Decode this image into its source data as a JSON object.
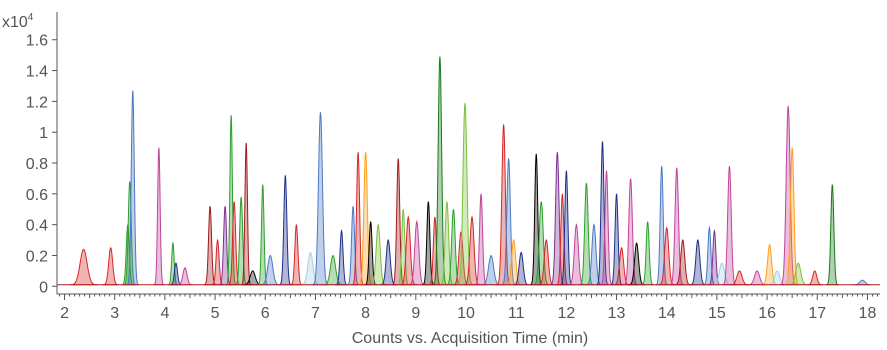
{
  "chart_data": {
    "type": "area",
    "xlabel": "Counts vs. Acquisition Time (min)",
    "ylabel": "",
    "y_multiplier_label": "x10",
    "y_multiplier_exp": "4",
    "xlim": [
      1.85,
      18.25
    ],
    "ylim": [
      -0.05,
      1.78
    ],
    "x_ticks": [
      2,
      3,
      4,
      5,
      6,
      7,
      8,
      9,
      10,
      11,
      12,
      13,
      14,
      15,
      16,
      17,
      18
    ],
    "y_ticks": [
      0,
      0.2,
      0.4,
      0.6,
      0.8,
      1,
      1.2,
      1.4,
      1.6
    ],
    "y_tick_labels": [
      "0",
      "0.2",
      "0.4",
      "0.6",
      "0.8",
      "1",
      "1.2",
      "1.4",
      "1.6"
    ],
    "grid": false,
    "legend": "none",
    "baseline": 0.01,
    "peaks": [
      {
        "x": 2.38,
        "y": 0.24,
        "w": 0.07,
        "c": "#d62728"
      },
      {
        "x": 2.92,
        "y": 0.25,
        "w": 0.04,
        "c": "#d62728"
      },
      {
        "x": 3.26,
        "y": 0.4,
        "w": 0.03,
        "c": "#2ca02c"
      },
      {
        "x": 3.3,
        "y": 0.68,
        "w": 0.03,
        "c": "#2ca02c"
      },
      {
        "x": 3.36,
        "y": 1.27,
        "w": 0.03,
        "c": "#4e79c4"
      },
      {
        "x": 3.88,
        "y": 0.9,
        "w": 0.025,
        "c": "#c2449b"
      },
      {
        "x": 4.16,
        "y": 0.28,
        "w": 0.025,
        "c": "#2ca02c"
      },
      {
        "x": 4.22,
        "y": 0.15,
        "w": 0.03,
        "c": "#1f2f8a"
      },
      {
        "x": 4.4,
        "y": 0.12,
        "w": 0.04,
        "c": "#c2449b"
      },
      {
        "x": 4.9,
        "y": 0.52,
        "w": 0.03,
        "c": "#a01c1c"
      },
      {
        "x": 5.05,
        "y": 0.3,
        "w": 0.03,
        "c": "#d62728"
      },
      {
        "x": 5.2,
        "y": 0.52,
        "w": 0.03,
        "c": "#7b3294"
      },
      {
        "x": 5.32,
        "y": 1.11,
        "w": 0.025,
        "c": "#2ca02c"
      },
      {
        "x": 5.38,
        "y": 0.55,
        "w": 0.03,
        "c": "#d62728"
      },
      {
        "x": 5.52,
        "y": 0.58,
        "w": 0.03,
        "c": "#2ca02c"
      },
      {
        "x": 5.62,
        "y": 0.93,
        "w": 0.025,
        "c": "#a01c1c"
      },
      {
        "x": 5.75,
        "y": 0.1,
        "w": 0.05,
        "c": "#000000"
      },
      {
        "x": 5.95,
        "y": 0.66,
        "w": 0.025,
        "c": "#2ca02c"
      },
      {
        "x": 6.1,
        "y": 0.2,
        "w": 0.05,
        "c": "#4e79c4"
      },
      {
        "x": 6.4,
        "y": 0.72,
        "w": 0.03,
        "c": "#1f2f8a"
      },
      {
        "x": 6.62,
        "y": 0.4,
        "w": 0.03,
        "c": "#d62728"
      },
      {
        "x": 6.9,
        "y": 0.22,
        "w": 0.05,
        "c": "#a6cee3"
      },
      {
        "x": 7.1,
        "y": 1.13,
        "w": 0.04,
        "c": "#4e79c4"
      },
      {
        "x": 7.35,
        "y": 0.2,
        "w": 0.05,
        "c": "#2ca02c"
      },
      {
        "x": 7.52,
        "y": 0.36,
        "w": 0.03,
        "c": "#1f2f8a"
      },
      {
        "x": 7.75,
        "y": 0.52,
        "w": 0.03,
        "c": "#4e79c4"
      },
      {
        "x": 7.85,
        "y": 0.87,
        "w": 0.03,
        "c": "#d62728"
      },
      {
        "x": 8.0,
        "y": 0.87,
        "w": 0.035,
        "c": "#ff9f1c"
      },
      {
        "x": 8.1,
        "y": 0.42,
        "w": 0.03,
        "c": "#000000"
      },
      {
        "x": 8.25,
        "y": 0.4,
        "w": 0.04,
        "c": "#7fbf3f"
      },
      {
        "x": 8.45,
        "y": 0.3,
        "w": 0.04,
        "c": "#1f2f8a"
      },
      {
        "x": 8.65,
        "y": 0.83,
        "w": 0.03,
        "c": "#a01c1c"
      },
      {
        "x": 8.75,
        "y": 0.5,
        "w": 0.03,
        "c": "#7fbf3f"
      },
      {
        "x": 8.85,
        "y": 0.45,
        "w": 0.04,
        "c": "#d62728"
      },
      {
        "x": 9.02,
        "y": 0.42,
        "w": 0.04,
        "c": "#c2449b"
      },
      {
        "x": 9.25,
        "y": 0.55,
        "w": 0.03,
        "c": "#000000"
      },
      {
        "x": 9.38,
        "y": 0.45,
        "w": 0.03,
        "c": "#d62728"
      },
      {
        "x": 9.48,
        "y": 1.49,
        "w": 0.035,
        "c": "#1a7a1a"
      },
      {
        "x": 9.62,
        "y": 0.55,
        "w": 0.035,
        "c": "#7fbf3f"
      },
      {
        "x": 9.75,
        "y": 0.5,
        "w": 0.035,
        "c": "#2ca02c"
      },
      {
        "x": 9.9,
        "y": 0.35,
        "w": 0.04,
        "c": "#d62728"
      },
      {
        "x": 9.98,
        "y": 1.19,
        "w": 0.04,
        "c": "#7fbf3f"
      },
      {
        "x": 10.12,
        "y": 0.45,
        "w": 0.04,
        "c": "#d62728"
      },
      {
        "x": 10.3,
        "y": 0.6,
        "w": 0.03,
        "c": "#c2449b"
      },
      {
        "x": 10.5,
        "y": 0.2,
        "w": 0.05,
        "c": "#4e79c4"
      },
      {
        "x": 10.75,
        "y": 1.05,
        "w": 0.035,
        "c": "#d62728"
      },
      {
        "x": 10.85,
        "y": 0.83,
        "w": 0.035,
        "c": "#4e79c4"
      },
      {
        "x": 10.95,
        "y": 0.3,
        "w": 0.04,
        "c": "#ff9f1c"
      },
      {
        "x": 11.1,
        "y": 0.22,
        "w": 0.04,
        "c": "#1f2f8a"
      },
      {
        "x": 11.4,
        "y": 0.86,
        "w": 0.03,
        "c": "#000000"
      },
      {
        "x": 11.5,
        "y": 0.55,
        "w": 0.04,
        "c": "#2ca02c"
      },
      {
        "x": 11.6,
        "y": 0.3,
        "w": 0.04,
        "c": "#d62728"
      },
      {
        "x": 11.82,
        "y": 0.87,
        "w": 0.035,
        "c": "#7b3294"
      },
      {
        "x": 11.92,
        "y": 0.6,
        "w": 0.03,
        "c": "#d62728"
      },
      {
        "x": 12.0,
        "y": 0.75,
        "w": 0.03,
        "c": "#1f2f8a"
      },
      {
        "x": 12.2,
        "y": 0.4,
        "w": 0.04,
        "c": "#c2449b"
      },
      {
        "x": 12.4,
        "y": 0.67,
        "w": 0.035,
        "c": "#2ca02c"
      },
      {
        "x": 12.55,
        "y": 0.4,
        "w": 0.04,
        "c": "#4e79c4"
      },
      {
        "x": 12.72,
        "y": 0.94,
        "w": 0.03,
        "c": "#1f2f8a"
      },
      {
        "x": 12.8,
        "y": 0.75,
        "w": 0.03,
        "c": "#c2449b"
      },
      {
        "x": 13.0,
        "y": 0.6,
        "w": 0.03,
        "c": "#1f2f8a"
      },
      {
        "x": 13.1,
        "y": 0.25,
        "w": 0.04,
        "c": "#d62728"
      },
      {
        "x": 13.28,
        "y": 0.7,
        "w": 0.035,
        "c": "#c2449b"
      },
      {
        "x": 13.4,
        "y": 0.28,
        "w": 0.04,
        "c": "#000000"
      },
      {
        "x": 13.62,
        "y": 0.42,
        "w": 0.03,
        "c": "#2ca02c"
      },
      {
        "x": 13.9,
        "y": 0.78,
        "w": 0.03,
        "c": "#4e79c4"
      },
      {
        "x": 14.0,
        "y": 0.38,
        "w": 0.04,
        "c": "#d62728"
      },
      {
        "x": 14.2,
        "y": 0.77,
        "w": 0.035,
        "c": "#c2449b"
      },
      {
        "x": 14.32,
        "y": 0.3,
        "w": 0.04,
        "c": "#a01c1c"
      },
      {
        "x": 14.62,
        "y": 0.3,
        "w": 0.04,
        "c": "#1f2f8a"
      },
      {
        "x": 14.85,
        "y": 0.38,
        "w": 0.03,
        "c": "#4e79c4"
      },
      {
        "x": 14.95,
        "y": 0.36,
        "w": 0.03,
        "c": "#7b3294"
      },
      {
        "x": 15.1,
        "y": 0.15,
        "w": 0.05,
        "c": "#a6cee3"
      },
      {
        "x": 15.25,
        "y": 0.78,
        "w": 0.035,
        "c": "#c2449b"
      },
      {
        "x": 15.45,
        "y": 0.1,
        "w": 0.05,
        "c": "#d62728"
      },
      {
        "x": 15.8,
        "y": 0.1,
        "w": 0.05,
        "c": "#c2449b"
      },
      {
        "x": 16.05,
        "y": 0.27,
        "w": 0.04,
        "c": "#ff9f1c"
      },
      {
        "x": 16.2,
        "y": 0.1,
        "w": 0.05,
        "c": "#a6cee3"
      },
      {
        "x": 16.42,
        "y": 1.17,
        "w": 0.04,
        "c": "#c2449b"
      },
      {
        "x": 16.5,
        "y": 0.9,
        "w": 0.035,
        "c": "#ff9f1c"
      },
      {
        "x": 16.62,
        "y": 0.15,
        "w": 0.05,
        "c": "#7fbf3f"
      },
      {
        "x": 16.95,
        "y": 0.1,
        "w": 0.04,
        "c": "#d62728"
      },
      {
        "x": 17.3,
        "y": 0.66,
        "w": 0.03,
        "c": "#1a7a1a"
      },
      {
        "x": 17.9,
        "y": 0.04,
        "w": 0.05,
        "c": "#4e79c4"
      }
    ]
  }
}
